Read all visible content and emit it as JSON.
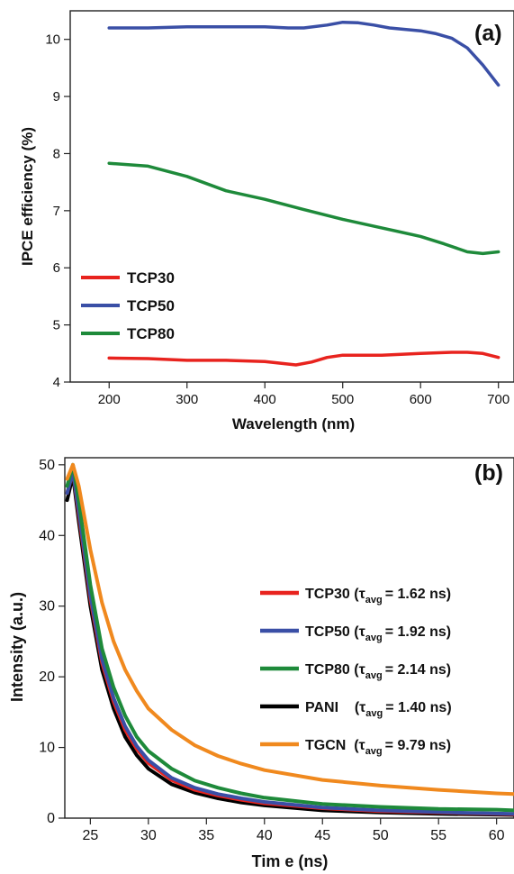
{
  "chart_data": [
    {
      "panel_label": "(a)",
      "type": "line",
      "xlabel": "Wavelength (nm)",
      "ylabel": "IPCE efficiency (%)",
      "xlim": [
        150,
        720
      ],
      "ylim": [
        4,
        10.5
      ],
      "xticks": [
        200,
        300,
        400,
        500,
        600,
        700
      ],
      "yticks": [
        4,
        5,
        6,
        7,
        8,
        9,
        10
      ],
      "grid": false,
      "legend_position": "bottom-left",
      "series": [
        {
          "name": "TCP30",
          "color": "#e8231e",
          "x": [
            200,
            250,
            300,
            350,
            400,
            420,
            440,
            460,
            480,
            500,
            550,
            600,
            640,
            660,
            680,
            700
          ],
          "y": [
            4.42,
            4.41,
            4.38,
            4.38,
            4.36,
            4.33,
            4.3,
            4.35,
            4.43,
            4.47,
            4.47,
            4.5,
            4.52,
            4.52,
            4.5,
            4.43
          ]
        },
        {
          "name": "TCP50",
          "color": "#3a4fa6",
          "x": [
            200,
            250,
            300,
            350,
            400,
            430,
            450,
            480,
            500,
            520,
            540,
            560,
            600,
            620,
            640,
            660,
            680,
            700
          ],
          "y": [
            10.2,
            10.2,
            10.22,
            10.22,
            10.22,
            10.2,
            10.2,
            10.25,
            10.3,
            10.29,
            10.25,
            10.2,
            10.15,
            10.1,
            10.02,
            9.85,
            9.55,
            9.2
          ]
        },
        {
          "name": "TCP80",
          "color": "#1e8a3a",
          "x": [
            200,
            250,
            300,
            350,
            400,
            450,
            500,
            550,
            600,
            630,
            660,
            680,
            700
          ],
          "y": [
            7.83,
            7.78,
            7.6,
            7.35,
            7.2,
            7.02,
            6.85,
            6.7,
            6.55,
            6.42,
            6.28,
            6.25,
            6.28
          ]
        }
      ]
    },
    {
      "panel_label": "(b)",
      "type": "line",
      "xlabel": "Tim e (ns)",
      "ylabel": "Intensity (a.u.)",
      "xlim": [
        22.8,
        61.5
      ],
      "ylim": [
        0,
        51
      ],
      "xticks": [
        25,
        30,
        35,
        40,
        45,
        50,
        55,
        60
      ],
      "yticks": [
        0,
        10,
        20,
        30,
        40,
        50
      ],
      "grid": false,
      "legend_position": "right",
      "series": [
        {
          "name": "TCP30",
          "legend_label": {
            "prefix": "TCP30 (",
            "tau": "τ",
            "tau_sub": "avg",
            "value": "= 1.62 ns)"
          },
          "color": "#e8231e",
          "x": [
            23,
            23.5,
            24,
            25,
            26,
            27,
            28,
            29,
            30,
            32,
            34,
            36,
            38,
            40,
            45,
            50,
            55,
            60,
            61.5
          ],
          "y": [
            46,
            49,
            43,
            31,
            22,
            16.5,
            12.5,
            9.8,
            7.8,
            5.4,
            4,
            3.2,
            2.6,
            2.1,
            1.4,
            1,
            0.8,
            0.6,
            0.55
          ]
        },
        {
          "name": "TCP50",
          "legend_label": {
            "prefix": "TCP50 (",
            "tau": "τ",
            "tau_sub": "avg",
            "value": "= 1.92 ns)"
          },
          "color": "#3a4fa6",
          "x": [
            23,
            23.5,
            24,
            25,
            26,
            27,
            28,
            29,
            30,
            32,
            34,
            36,
            38,
            40,
            45,
            50,
            55,
            60,
            61.5
          ],
          "y": [
            46,
            49,
            43.5,
            31.5,
            22.5,
            17,
            13,
            10.2,
            8.2,
            5.7,
            4.3,
            3.4,
            2.8,
            2.3,
            1.5,
            1.1,
            0.85,
            0.65,
            0.6
          ]
        },
        {
          "name": "TCP80",
          "legend_label": {
            "prefix": "TCP80 (",
            "tau": "τ",
            "tau_sub": "avg",
            "value": "= 2.14 ns)"
          },
          "color": "#1e8a3a",
          "x": [
            23,
            23.5,
            24,
            25,
            26,
            27,
            28,
            29,
            30,
            32,
            34,
            36,
            38,
            40,
            45,
            50,
            55,
            60,
            61.5
          ],
          "y": [
            47,
            50,
            45,
            33,
            24,
            18.5,
            14.5,
            11.5,
            9.5,
            7,
            5.3,
            4.3,
            3.5,
            2.9,
            2,
            1.6,
            1.3,
            1.2,
            1.1
          ]
        },
        {
          "name": "PANI",
          "legend_label": {
            "prefix": "PANI    (",
            "tau": "τ",
            "tau_sub": "avg",
            "value": "= 1.40 ns)"
          },
          "color": "#000000",
          "x": [
            23,
            23.5,
            24,
            25,
            26,
            27,
            28,
            29,
            30,
            32,
            34,
            36,
            38,
            40,
            45,
            50,
            55,
            60,
            61.5
          ],
          "y": [
            45,
            48.5,
            42,
            30,
            21,
            15.5,
            11.5,
            8.9,
            7,
            4.8,
            3.6,
            2.8,
            2.2,
            1.8,
            1.1,
            0.8,
            0.6,
            0.5,
            0.45
          ]
        },
        {
          "name": "TGCN",
          "legend_label": {
            "prefix": "TGCN  (",
            "tau": "τ",
            "tau_sub": "avg",
            "value": "= 9.79 ns)"
          },
          "color": "#f0891e",
          "x": [
            23,
            23.5,
            24,
            25,
            26,
            27,
            28,
            29,
            30,
            32,
            34,
            36,
            38,
            40,
            45,
            50,
            55,
            60,
            61.5
          ],
          "y": [
            48,
            50,
            47,
            38,
            30.5,
            25,
            21,
            18,
            15.5,
            12.5,
            10.3,
            8.8,
            7.7,
            6.8,
            5.4,
            4.6,
            4,
            3.5,
            3.4
          ]
        }
      ]
    }
  ]
}
